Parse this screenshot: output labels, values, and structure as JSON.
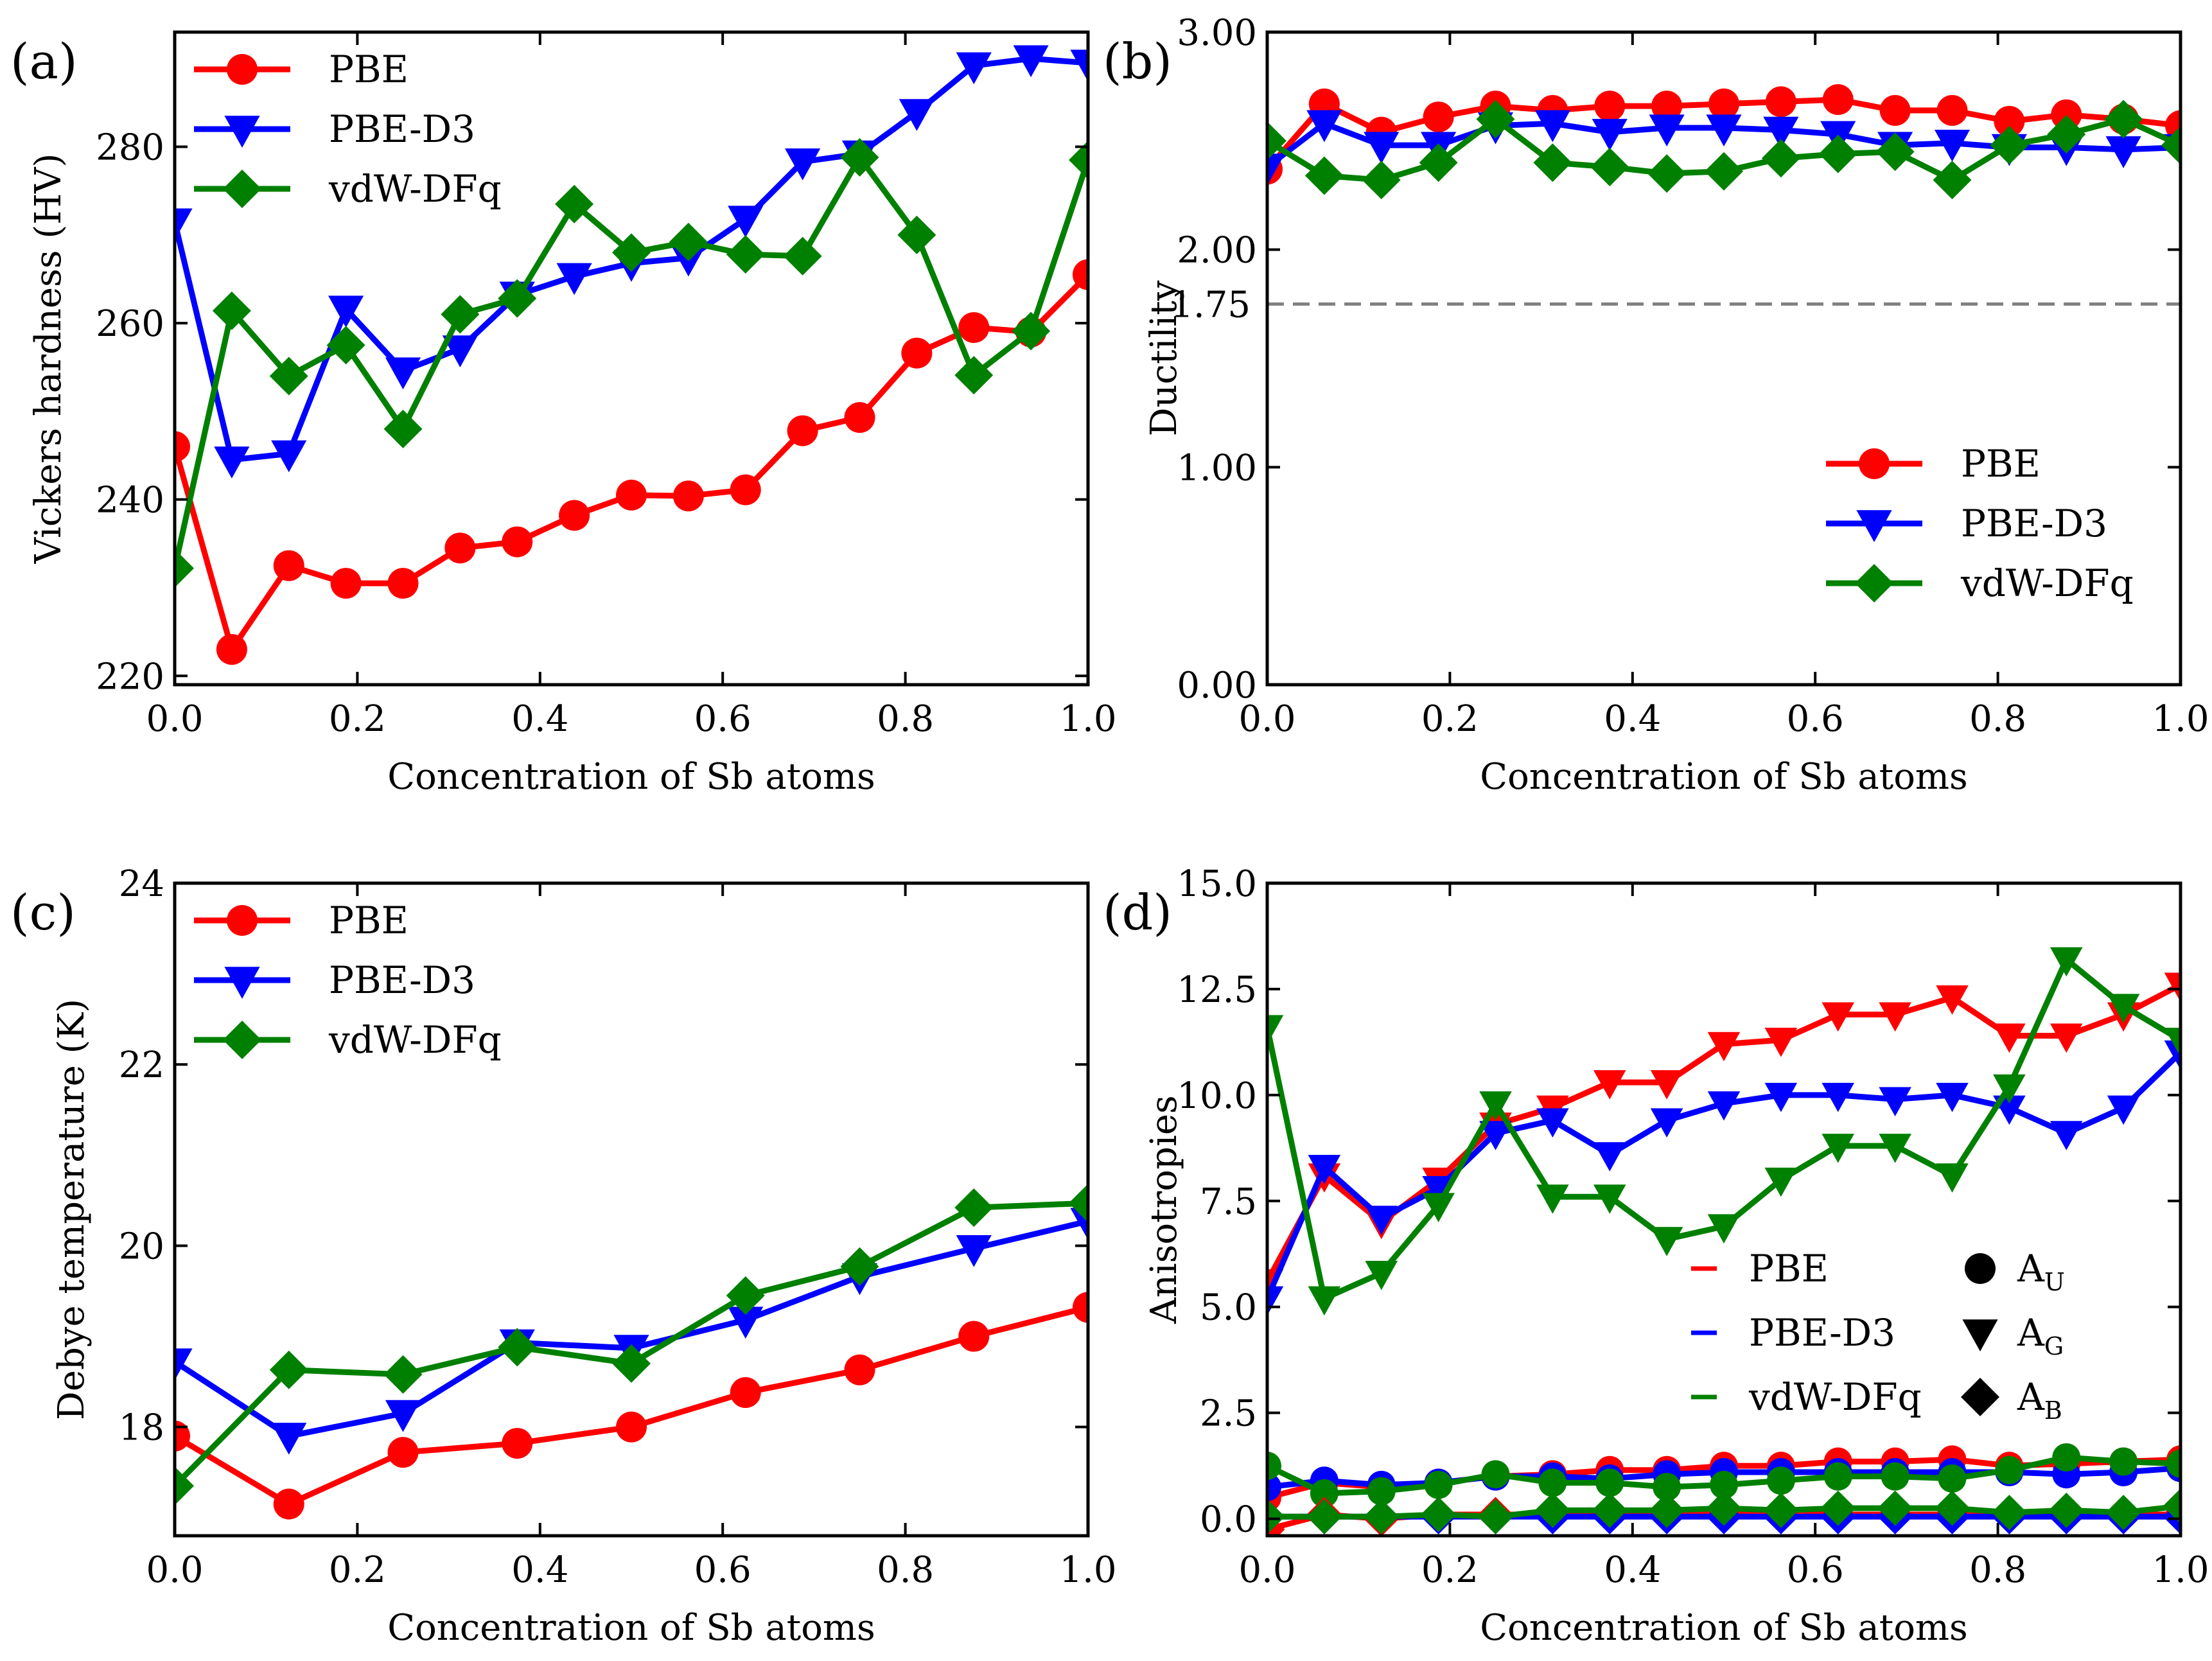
{
  "x_axis_label": "Concentration of Sb atoms",
  "colors": {
    "PBE": "#ff0000",
    "PBE-D3": "#0000ff",
    "vdW-DFq": "#008000"
  },
  "chart_data": [
    {
      "id": "a",
      "panel_label": "(a)",
      "type": "line",
      "ylabel": "Vickers hardness (HV)",
      "xlabel": "Concentration of Sb atoms",
      "xlim": [
        0,
        1
      ],
      "ylim": [
        219,
        293
      ],
      "xticks": [
        0,
        0.2,
        0.4,
        0.6,
        0.8,
        1.0
      ],
      "xtick_labels": [
        "0.0",
        "0.2",
        "0.4",
        "0.6",
        "0.8",
        "1.0"
      ],
      "yticks": [
        220,
        240,
        260,
        280
      ],
      "ytick_labels": [
        "220",
        "240",
        "260",
        "280"
      ],
      "legend_position": "top-left",
      "x": [
        0,
        0.0625,
        0.125,
        0.1875,
        0.25,
        0.3125,
        0.375,
        0.4375,
        0.5,
        0.5625,
        0.625,
        0.6875,
        0.75,
        0.8125,
        0.875,
        0.9375,
        1.0
      ],
      "series": [
        {
          "name": "PBE",
          "marker": "circle",
          "values": [
            246,
            223,
            232.5,
            230.5,
            230.5,
            234.5,
            235.2,
            238.2,
            240.5,
            240.4,
            241.1,
            247.8,
            249.3,
            256.6,
            259.5,
            259,
            265.5
          ]
        },
        {
          "name": "PBE-D3",
          "marker": "triangle-down",
          "values": [
            271.5,
            244.5,
            245.2,
            261.6,
            254.6,
            257.1,
            263.2,
            265.3,
            266.8,
            267.4,
            271.8,
            278.3,
            279.2,
            283.9,
            289.2,
            290,
            289.5
          ]
        },
        {
          "name": "vdW-DFq",
          "marker": "diamond",
          "values": [
            232.2,
            261.4,
            254,
            257.5,
            248,
            261,
            262.8,
            273.5,
            268,
            269.2,
            267.8,
            267.6,
            278.8,
            270,
            254.1,
            259.1,
            278.5
          ]
        }
      ]
    },
    {
      "id": "b",
      "panel_label": "(b)",
      "type": "line",
      "ylabel": "Ductility",
      "xlabel": "Concentration of Sb atoms",
      "xlim": [
        0,
        1
      ],
      "ylim": [
        0,
        3
      ],
      "xticks": [
        0,
        0.2,
        0.4,
        0.6,
        0.8,
        1.0
      ],
      "xtick_labels": [
        "0.0",
        "0.2",
        "0.4",
        "0.6",
        "0.8",
        "1.0"
      ],
      "yticks": [
        0,
        1,
        2,
        3
      ],
      "ytick_labels": [
        "0.00",
        "1.00",
        "2.00",
        "3.00"
      ],
      "reference_line": {
        "y": 1.75,
        "label": "1.75"
      },
      "legend_position": "lower-right",
      "x": [
        0,
        0.0625,
        0.125,
        0.1875,
        0.25,
        0.3125,
        0.375,
        0.4375,
        0.5,
        0.5625,
        0.625,
        0.6875,
        0.75,
        0.8125,
        0.875,
        0.9375,
        1.0
      ],
      "series": [
        {
          "name": "PBE",
          "marker": "circle",
          "values": [
            2.37,
            2.67,
            2.54,
            2.61,
            2.66,
            2.64,
            2.66,
            2.66,
            2.67,
            2.68,
            2.69,
            2.64,
            2.64,
            2.59,
            2.62,
            2.6,
            2.57
          ]
        },
        {
          "name": "PBE-D3",
          "marker": "triangle-down",
          "values": [
            2.38,
            2.58,
            2.48,
            2.48,
            2.57,
            2.58,
            2.54,
            2.56,
            2.56,
            2.55,
            2.53,
            2.48,
            2.49,
            2.47,
            2.47,
            2.46,
            2.47
          ]
        },
        {
          "name": "vdW-DFq",
          "marker": "diamond",
          "values": [
            2.5,
            2.34,
            2.32,
            2.4,
            2.6,
            2.4,
            2.38,
            2.35,
            2.36,
            2.42,
            2.44,
            2.45,
            2.32,
            2.48,
            2.53,
            2.6,
            2.48
          ]
        }
      ]
    },
    {
      "id": "c",
      "panel_label": "(c)",
      "type": "line",
      "ylabel": "Debye temperature (K)",
      "xlabel": "Concentration of Sb atoms",
      "xlim": [
        0,
        1
      ],
      "ylim": [
        16.8,
        24.0
      ],
      "xticks": [
        0,
        0.2,
        0.4,
        0.6,
        0.8,
        1.0
      ],
      "xtick_labels": [
        "0.0",
        "0.2",
        "0.4",
        "0.6",
        "0.8",
        "1.0"
      ],
      "yticks": [
        18,
        20,
        22,
        24
      ],
      "ytick_labels": [
        "18",
        "20",
        "22",
        "24"
      ],
      "legend_position": "top-left",
      "x": [
        0,
        0.125,
        0.25,
        0.375,
        0.5,
        0.625,
        0.75,
        0.875,
        1.0
      ],
      "series": [
        {
          "name": "PBE",
          "marker": "circle",
          "values": [
            17.9,
            17.15,
            17.72,
            17.82,
            18.0,
            18.38,
            18.63,
            19.0,
            19.32
          ]
        },
        {
          "name": "PBE-D3",
          "marker": "triangle-down",
          "values": [
            18.72,
            17.9,
            18.15,
            18.93,
            18.87,
            19.18,
            19.66,
            19.97,
            20.27
          ]
        },
        {
          "name": "vdW-DFq",
          "marker": "diamond",
          "values": [
            17.35,
            18.63,
            18.58,
            18.88,
            18.7,
            19.45,
            19.77,
            20.42,
            20.47
          ]
        }
      ]
    },
    {
      "id": "d",
      "panel_label": "(d)",
      "type": "line",
      "ylabel": "Anisotropies",
      "xlabel": "Concentration of Sb atoms",
      "xlim": [
        0,
        1
      ],
      "ylim": [
        -0.4,
        15.0
      ],
      "xticks": [
        0,
        0.2,
        0.4,
        0.6,
        0.8,
        1.0
      ],
      "xtick_labels": [
        "0.0",
        "0.2",
        "0.4",
        "0.6",
        "0.8",
        "1.0"
      ],
      "yticks": [
        0,
        2.5,
        5,
        7.5,
        10,
        12.5,
        15
      ],
      "ytick_labels": [
        "0.0",
        "2.5",
        "5.0",
        "7.5",
        "10.0",
        "12.5",
        "15.0"
      ],
      "legend_position": "lower-right",
      "legend_methods": [
        "PBE",
        "PBE-D3",
        "vdW-DFq"
      ],
      "legend_markers": [
        {
          "marker": "circle",
          "main": "A",
          "sub": "U"
        },
        {
          "marker": "triangle-down",
          "main": "A",
          "sub": "G"
        },
        {
          "marker": "diamond",
          "main": "A",
          "sub": "B"
        }
      ],
      "x": [
        0,
        0.0625,
        0.125,
        0.1875,
        0.25,
        0.3125,
        0.375,
        0.4375,
        0.5,
        0.5625,
        0.625,
        0.6875,
        0.75,
        0.8125,
        0.875,
        0.9375,
        1.0
      ],
      "series": [
        {
          "name": "PBE",
          "quantity": "AG",
          "marker": "triangle-down",
          "values": [
            5.6,
            8.1,
            7.0,
            8.0,
            9.3,
            9.7,
            10.3,
            10.3,
            11.2,
            11.3,
            11.9,
            11.9,
            12.3,
            11.4,
            11.4,
            11.9,
            12.6
          ]
        },
        {
          "name": "PBE-D3",
          "quantity": "AG",
          "marker": "triangle-down",
          "values": [
            5.2,
            8.3,
            7.1,
            7.8,
            9.1,
            9.4,
            8.6,
            9.4,
            9.8,
            10.0,
            10.0,
            9.9,
            10.0,
            9.7,
            9.1,
            9.7,
            11.0
          ]
        },
        {
          "name": "vdW-DFq",
          "quantity": "AG",
          "marker": "triangle-down",
          "values": [
            11.6,
            5.2,
            5.8,
            7.4,
            9.8,
            7.6,
            7.6,
            6.6,
            6.9,
            8.0,
            8.8,
            8.8,
            8.1,
            10.2,
            13.2,
            12.1,
            11.3
          ]
        },
        {
          "name": "PBE",
          "quantity": "AU",
          "marker": "circle",
          "values": [
            0.5,
            0.85,
            0.75,
            0.85,
            1.0,
            1.05,
            1.15,
            1.15,
            1.25,
            1.25,
            1.35,
            1.35,
            1.4,
            1.25,
            1.3,
            1.35,
            1.4
          ]
        },
        {
          "name": "PBE-D3",
          "quantity": "AU",
          "marker": "circle",
          "values": [
            0.75,
            0.9,
            0.8,
            0.85,
            1.0,
            1.0,
            0.95,
            1.05,
            1.1,
            1.1,
            1.1,
            1.1,
            1.1,
            1.1,
            1.05,
            1.1,
            1.2
          ]
        },
        {
          "name": "vdW-DFq",
          "quantity": "AU",
          "marker": "circle",
          "values": [
            1.25,
            0.6,
            0.65,
            0.8,
            1.05,
            0.85,
            0.85,
            0.75,
            0.8,
            0.9,
            1.0,
            1.0,
            0.95,
            1.15,
            1.45,
            1.35,
            1.3
          ]
        },
        {
          "name": "PBE",
          "quantity": "AB",
          "marker": "diamond",
          "values": [
            -0.25,
            0.1,
            0.0,
            0.1,
            0.1,
            0.1,
            0.1,
            0.1,
            0.1,
            0.1,
            0.1,
            0.1,
            0.1,
            0.1,
            0.1,
            0.1,
            0.1
          ]
        },
        {
          "name": "PBE-D3",
          "quantity": "AB",
          "marker": "diamond",
          "values": [
            0.05,
            0.05,
            0.05,
            0.05,
            0.05,
            0.05,
            0.05,
            0.05,
            0.05,
            0.05,
            0.05,
            0.05,
            0.05,
            0.05,
            0.05,
            0.05,
            0.05
          ]
        },
        {
          "name": "vdW-DFq",
          "quantity": "AB",
          "marker": "diamond",
          "values": [
            0.05,
            0.05,
            0.05,
            0.1,
            0.05,
            0.2,
            0.2,
            0.2,
            0.25,
            0.2,
            0.25,
            0.25,
            0.25,
            0.15,
            0.2,
            0.15,
            0.3
          ]
        }
      ]
    }
  ]
}
